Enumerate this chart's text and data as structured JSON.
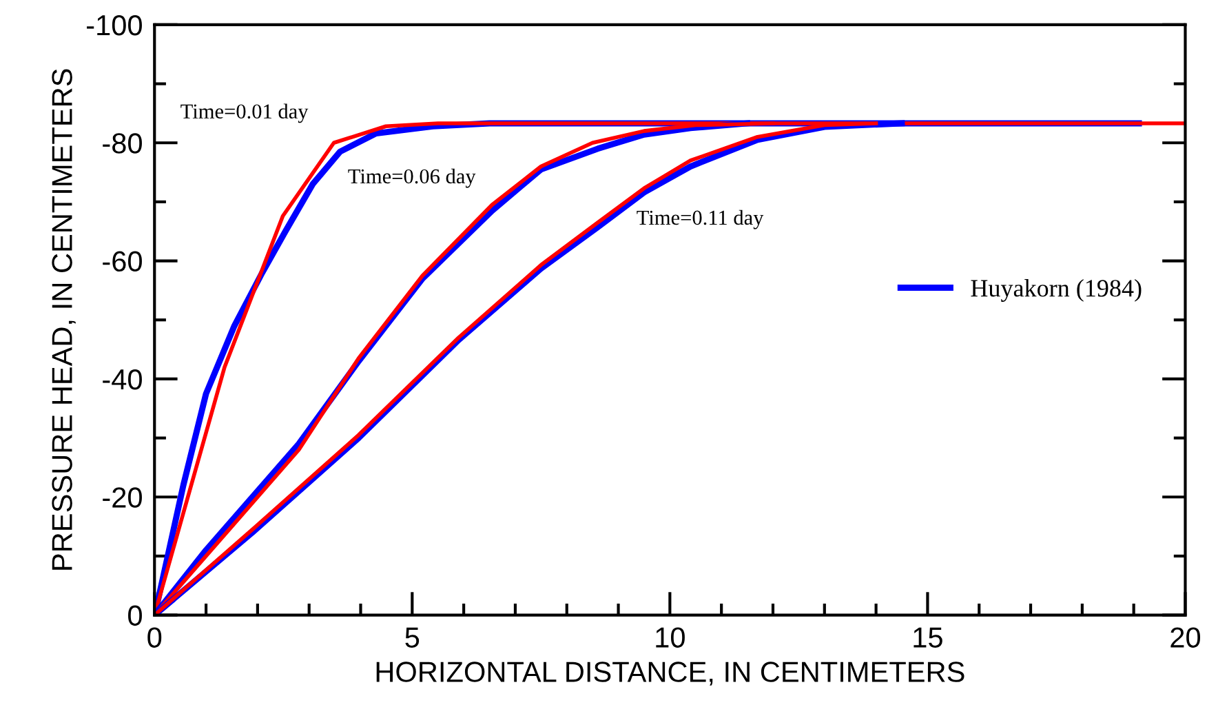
{
  "chart_data": {
    "type": "line",
    "xlabel": "HORIZONTAL DISTANCE, IN CENTIMETERS",
    "ylabel": "PRESSURE HEAD, IN CENTIMETERS",
    "xlim": [
      0,
      20
    ],
    "ylim": [
      0,
      -100
    ],
    "xticks": [
      0,
      {
        "value": 1,
        "label": null
      },
      {
        "value": 2,
        "label": null
      },
      {
        "value": 3,
        "label": null
      },
      {
        "value": 4,
        "label": null
      },
      5,
      {
        "value": 6,
        "label": null
      },
      {
        "value": 7,
        "label": null
      },
      {
        "value": 8,
        "label": null
      },
      {
        "value": 9,
        "label": null
      },
      10,
      {
        "value": 11,
        "label": null
      },
      {
        "value": 12,
        "label": null
      },
      {
        "value": 13,
        "label": null
      },
      {
        "value": 14,
        "label": null
      },
      15,
      {
        "value": 16,
        "label": null
      },
      {
        "value": 17,
        "label": null
      },
      {
        "value": 18,
        "label": null
      },
      {
        "value": 19,
        "label": null
      },
      20
    ],
    "yticks": [
      0,
      {
        "value": -10,
        "label": null
      },
      -20,
      {
        "value": -30,
        "label": null
      },
      -40,
      {
        "value": -50,
        "label": null
      },
      -60,
      {
        "value": -70,
        "label": null
      },
      -80,
      {
        "value": -90,
        "label": null
      },
      -100
    ],
    "grid": false,
    "legend": "right",
    "line_style": "solid",
    "marker": "none",
    "series": [
      {
        "name": "Huyakorn (1984)",
        "color": "#0000ff",
        "x": [
          0,
          0.03,
          0.56,
          1.0,
          1.55,
          2.09,
          2.54,
          3.07,
          3.6,
          4.3,
          5.4,
          6.5,
          19.1
        ],
        "values": [
          0,
          -1,
          -22,
          -37.5,
          -49,
          -58,
          -65,
          -73,
          -78.5,
          -81.6,
          -82.8,
          -83.3,
          -83.3
        ]
      },
      {
        "color": "#ff0000",
        "x": [
          0,
          1.36,
          2.49,
          3.48,
          4.49,
          5.5,
          20
        ],
        "values": [
          0,
          -42,
          -67.6,
          -80,
          -82.8,
          -83.3,
          -83.3
        ]
      },
      {
        "color": "#0000ff",
        "x": [
          0,
          1.0,
          2.8,
          3.96,
          5.2,
          6.55,
          7.5,
          8.6,
          9.5,
          10.4,
          11.5
        ],
        "values": [
          0,
          -11,
          -29,
          -43,
          -57,
          -68.5,
          -75.5,
          -79,
          -81.4,
          -82.5,
          -83.3
        ]
      },
      {
        "color": "#ff0000",
        "x": [
          0,
          1.0,
          2.8,
          3.96,
          5.2,
          6.55,
          7.5,
          8.5,
          9.5,
          10.5,
          12
        ],
        "values": [
          0,
          -10,
          -28,
          -43.5,
          -57.5,
          -69.5,
          -76,
          -80,
          -82,
          -83,
          -83.3
        ]
      },
      {
        "color": "#0000ff",
        "x": [
          0,
          1.9,
          3.96,
          5.9,
          7.5,
          8.6,
          9.5,
          10.4,
          11.7,
          13.0,
          14.5
        ],
        "values": [
          0,
          -14,
          -30,
          -46.6,
          -58.7,
          -65.7,
          -71.6,
          -76,
          -80.5,
          -82.7,
          -83.3
        ]
      },
      {
        "color": "#ff0000",
        "x": [
          0,
          1.9,
          3.96,
          5.9,
          7.5,
          8.6,
          9.5,
          10.4,
          11.7,
          13.0,
          14
        ],
        "values": [
          0,
          -14.5,
          -30.5,
          -47,
          -59.3,
          -66.5,
          -72.3,
          -77,
          -81,
          -83,
          -83.3
        ]
      }
    ],
    "annotations": [
      "Time=0.01 day",
      "Time=0.06 day",
      "Time=0.11 day"
    ]
  }
}
